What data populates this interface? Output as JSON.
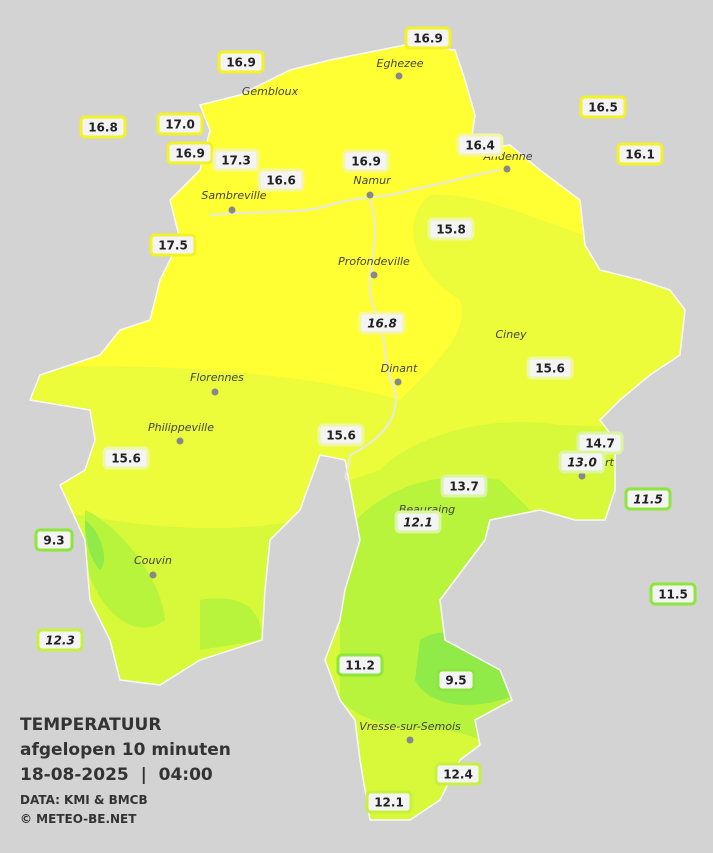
{
  "header": {
    "title": "TEMPERATUUR",
    "subtitle": "afgelopen 10 minuten",
    "datetime": "18-08-2025  |  04:00",
    "source": "DATA: KMI & BMCB",
    "credit": "© METEO-BE.NET"
  },
  "cities": [
    "Eghezee",
    "Gembloux",
    "Andenne",
    "Namur",
    "Sambreville",
    "Profondeville",
    "Ciney",
    "Dinant",
    "Florennes",
    "Philippeville",
    "Rochefort",
    "Beauraing",
    "Couvin",
    "Vresse-sur-Semois"
  ],
  "stations": [
    {
      "label": "16.9",
      "italic": false,
      "color": "#f2f226"
    },
    {
      "label": "16.9",
      "italic": false,
      "color": "#f2f226"
    },
    {
      "label": "16.5",
      "italic": false,
      "color": "#f2f226"
    },
    {
      "label": "16.8",
      "italic": false,
      "color": "#f2f226"
    },
    {
      "label": "17.0",
      "italic": false,
      "color": "#f2f226"
    },
    {
      "label": "16.9",
      "italic": false,
      "color": "#f2f226"
    },
    {
      "label": "17.3",
      "italic": false,
      "color": "#f6f6a0"
    },
    {
      "label": "16.6",
      "italic": false,
      "color": "#f6f6a0"
    },
    {
      "label": "16.9",
      "italic": false,
      "color": "#f6f6a0"
    },
    {
      "label": "16.4",
      "italic": false,
      "color": "#f6f6a0"
    },
    {
      "label": "16.1",
      "italic": false,
      "color": "#f2f226"
    },
    {
      "label": "17.5",
      "italic": false,
      "color": "#f2f226"
    },
    {
      "label": "15.8",
      "italic": false,
      "color": "#eef8a0"
    },
    {
      "label": "16.8",
      "italic": true,
      "color": "#f6f6a0"
    },
    {
      "label": "15.6",
      "italic": false,
      "color": "#eef8a0"
    },
    {
      "label": "15.6",
      "italic": false,
      "color": "#eef8a0"
    },
    {
      "label": "15.6",
      "italic": false,
      "color": "#eef8a0"
    },
    {
      "label": "14.7",
      "italic": false,
      "color": "#dcf5a0"
    },
    {
      "label": "13.0",
      "italic": true,
      "color": "#dcf5a0"
    },
    {
      "label": "13.7",
      "italic": false,
      "color": "#dcf5a0"
    },
    {
      "label": "11.5",
      "italic": true,
      "color": "#8ee63c"
    },
    {
      "label": "12.1",
      "italic": true,
      "color": "#dcf5a0"
    },
    {
      "label": "9.3",
      "italic": false,
      "color": "#8ee63c"
    },
    {
      "label": "11.5",
      "italic": false,
      "color": "#8ee63c"
    },
    {
      "label": "12.3",
      "italic": true,
      "color": "#c8f03c"
    },
    {
      "label": "11.2",
      "italic": false,
      "color": "#8ee63c"
    },
    {
      "label": "9.5",
      "italic": false,
      "color": "#8ee63c"
    },
    {
      "label": "12.4",
      "italic": false,
      "color": "#c8f03c"
    },
    {
      "label": "12.1",
      "italic": false,
      "color": "#c8f03c"
    }
  ]
}
